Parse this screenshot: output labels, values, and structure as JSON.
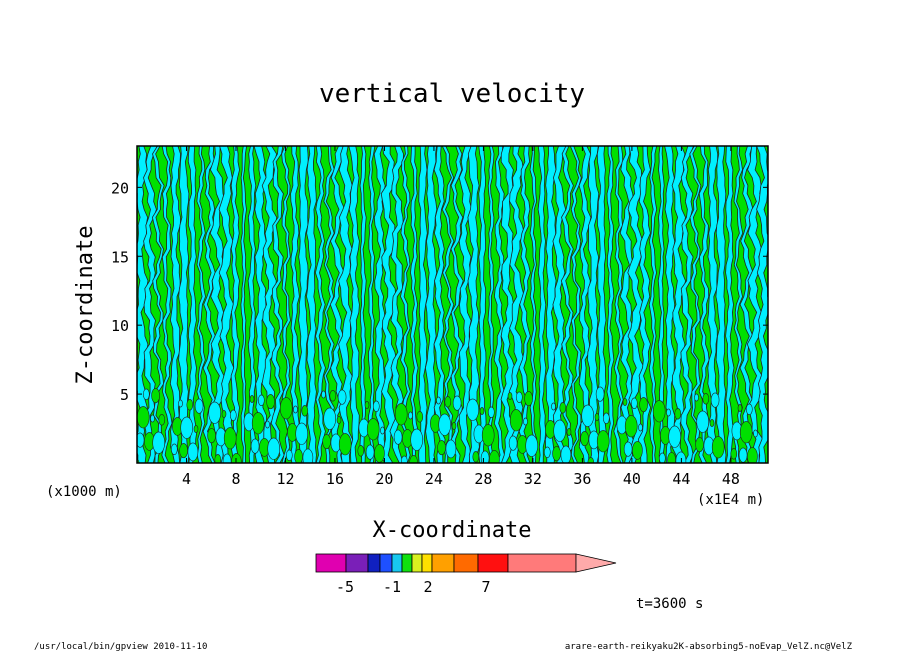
{
  "chart_data": {
    "type": "heatmap",
    "title": "vertical velocity",
    "xlabel": "X-coordinate",
    "ylabel": "Z-coordinate",
    "x_unit_left": "(x1000 m)",
    "x_unit_right": "(x1E4 m)",
    "xlim": [
      0,
      51
    ],
    "ylim": [
      0,
      23
    ],
    "x_ticks": [
      4,
      8,
      12,
      16,
      20,
      24,
      28,
      32,
      36,
      40,
      44,
      48
    ],
    "y_ticks": [
      5,
      10,
      15,
      20
    ],
    "time_label": "t=3600 s",
    "colorbar": {
      "colors": [
        "#e000b0",
        "#7a1fb8",
        "#1020c0",
        "#1e50ff",
        "#18c8f0",
        "#10e010",
        "#d8f020",
        "#ffe000",
        "#ffa000",
        "#ff6a00",
        "#ff1010",
        "#ff7a7a",
        "#ffaaaa"
      ],
      "tick_labels": [
        "-5",
        "-1",
        "2",
        "7"
      ],
      "tick_index": [
        1,
        3,
        5,
        8
      ]
    },
    "field_colors": {
      "negative": "#00f0ff",
      "positive": "#00e000"
    }
  },
  "footer": {
    "left": "/usr/local/bin/gpview  2010-11-10",
    "right": "arare-earth-reikyaku2K-absorbing5-noEvap_VelZ.nc@VelZ"
  }
}
